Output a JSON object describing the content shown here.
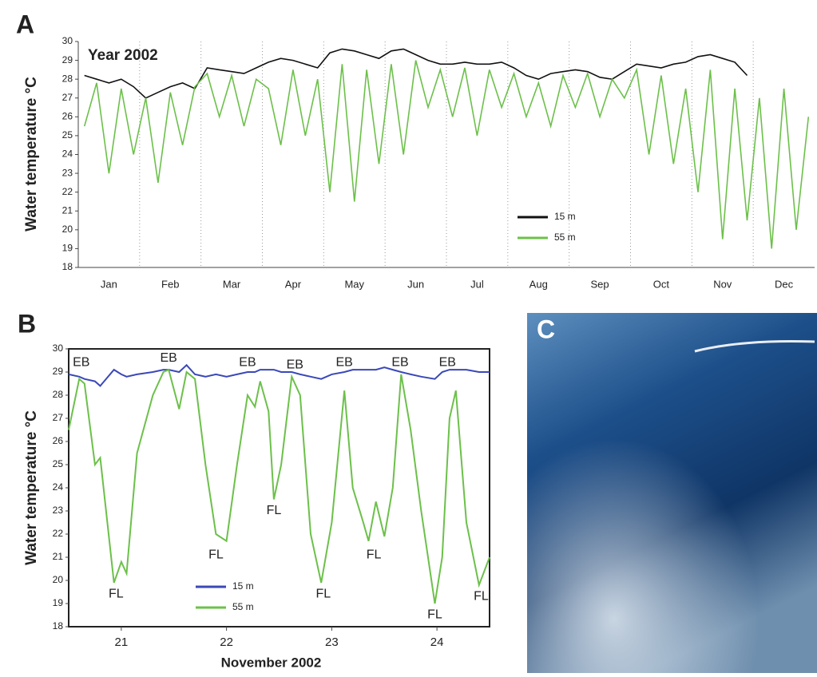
{
  "chart_data": [
    {
      "type": "line",
      "panel": "A",
      "subtitle": "Year 2002",
      "ylabel": "Water temperature °C",
      "categories": [
        null,
        null,
        "Jan",
        null,
        null,
        null,
        null,
        "Feb",
        null,
        null,
        null,
        null,
        "Mar",
        null,
        null,
        null,
        null,
        "Apr",
        null,
        null,
        null,
        null,
        "May",
        null,
        null,
        null,
        null,
        "Jun",
        null,
        null,
        null,
        null,
        "Jul",
        null,
        null,
        null,
        null,
        "Aug",
        null,
        null,
        null,
        null,
        "Sep",
        null,
        null,
        null,
        null,
        "Oct",
        null,
        null,
        null,
        null,
        "Nov",
        null,
        null,
        null,
        null,
        "Dec",
        null,
        null
      ],
      "series": [
        {
          "name": "15 m",
          "color": "#111111",
          "values": [
            28.2,
            28.0,
            27.8,
            28.0,
            27.6,
            27.0,
            27.3,
            27.6,
            27.8,
            27.5,
            28.6,
            28.5,
            28.4,
            28.3,
            28.6,
            28.9,
            29.1,
            29.0,
            28.8,
            28.6,
            29.4,
            29.6,
            29.5,
            29.3,
            29.1,
            29.5,
            29.6,
            29.3,
            29.0,
            28.8,
            28.8,
            28.9,
            28.8,
            28.8,
            28.9,
            28.6,
            28.2,
            28.0,
            28.3,
            28.4,
            28.5,
            28.4,
            28.1,
            28.0,
            28.4,
            28.8,
            28.7,
            28.6,
            28.8,
            28.9,
            29.2,
            29.3,
            29.1,
            28.9,
            28.2,
            null,
            null,
            null,
            null,
            null
          ]
        },
        {
          "name": "55 m",
          "color": "#6cc04a",
          "values": [
            25.5,
            27.8,
            23.0,
            27.5,
            24.0,
            27.0,
            22.5,
            27.3,
            24.5,
            27.6,
            28.3,
            26.0,
            28.2,
            25.5,
            28.0,
            27.5,
            24.5,
            28.5,
            25.0,
            28.0,
            22.0,
            28.8,
            21.5,
            28.5,
            23.5,
            28.8,
            24.0,
            29.0,
            26.5,
            28.5,
            26.0,
            28.6,
            25.0,
            28.5,
            26.5,
            28.3,
            26.0,
            27.8,
            25.5,
            28.2,
            26.5,
            28.3,
            26.0,
            28.0,
            27.0,
            28.5,
            24.0,
            28.2,
            23.5,
            27.5,
            22.0,
            28.5,
            19.5,
            27.5,
            20.5,
            27.0,
            19.0,
            27.5,
            20.0,
            26.0
          ]
        }
      ],
      "ylim": [
        18,
        30
      ],
      "yticks": [
        18,
        19,
        20,
        21,
        22,
        23,
        24,
        25,
        26,
        27,
        28,
        29,
        30
      ]
    },
    {
      "type": "line",
      "panel": "B",
      "ylabel": "Water temperature °C",
      "xlabel": "November 2002",
      "x": [
        20.5,
        20.6,
        20.65,
        20.75,
        20.8,
        20.93,
        21.0,
        21.05,
        21.15,
        21.3,
        21.4,
        21.45,
        21.55,
        21.62,
        21.7,
        21.8,
        21.9,
        22.0,
        22.1,
        22.2,
        22.27,
        22.32,
        22.4,
        22.45,
        22.52,
        22.62,
        22.7,
        22.8,
        22.9,
        23.0,
        23.12,
        23.2,
        23.3,
        23.35,
        23.42,
        23.5,
        23.58,
        23.66,
        23.75,
        23.85,
        23.98,
        24.05,
        24.12,
        24.18,
        24.28,
        24.4,
        24.5
      ],
      "series": [
        {
          "name": "15 m",
          "color": "#3a48b8",
          "values": [
            28.9,
            28.8,
            28.7,
            28.6,
            28.4,
            29.1,
            28.9,
            28.8,
            28.9,
            29.0,
            29.1,
            29.1,
            29.0,
            29.3,
            28.9,
            28.8,
            28.9,
            28.8,
            28.9,
            29.0,
            29.0,
            29.1,
            29.1,
            29.1,
            29.0,
            29.0,
            28.9,
            28.8,
            28.7,
            28.9,
            29.0,
            29.1,
            29.1,
            29.1,
            29.1,
            29.2,
            29.1,
            29.0,
            28.9,
            28.8,
            28.7,
            29.0,
            29.1,
            29.1,
            29.1,
            29.0,
            29.0
          ]
        },
        {
          "name": "55 m",
          "color": "#6cc04a",
          "values": [
            26.5,
            28.7,
            28.5,
            25.0,
            25.3,
            19.9,
            20.8,
            20.3,
            25.5,
            28.0,
            29.0,
            29.1,
            27.4,
            29.0,
            28.7,
            25.0,
            22.0,
            21.7,
            25.0,
            28.0,
            27.5,
            28.6,
            27.3,
            23.5,
            25.0,
            28.8,
            28.0,
            22.0,
            19.9,
            22.5,
            28.2,
            24.0,
            22.5,
            21.7,
            23.4,
            21.9,
            24.0,
            28.9,
            26.5,
            23.0,
            19.0,
            21.0,
            27.0,
            28.2,
            22.5,
            19.8,
            21.0
          ]
        }
      ],
      "xlim": [
        20.5,
        24.5
      ],
      "xticks": [
        21,
        22,
        23,
        24
      ],
      "ylim": [
        18,
        30
      ],
      "yticks": [
        18,
        19,
        20,
        21,
        22,
        23,
        24,
        25,
        26,
        27,
        28,
        29,
        30
      ],
      "annotations": [
        {
          "text": "EB",
          "x": 20.62,
          "y": 29.4
        },
        {
          "text": "EB",
          "x": 21.45,
          "y": 29.6
        },
        {
          "text": "EB",
          "x": 22.2,
          "y": 29.4
        },
        {
          "text": "EB",
          "x": 22.65,
          "y": 29.3
        },
        {
          "text": "EB",
          "x": 23.12,
          "y": 29.4
        },
        {
          "text": "EB",
          "x": 23.65,
          "y": 29.4
        },
        {
          "text": "EB",
          "x": 24.1,
          "y": 29.4
        },
        {
          "text": "FL",
          "x": 20.95,
          "y": 19.4
        },
        {
          "text": "FL",
          "x": 21.9,
          "y": 21.1
        },
        {
          "text": "FL",
          "x": 22.45,
          "y": 23.0
        },
        {
          "text": "FL",
          "x": 22.92,
          "y": 19.4
        },
        {
          "text": "FL",
          "x": 23.4,
          "y": 21.1
        },
        {
          "text": "FL",
          "x": 23.98,
          "y": 18.5
        },
        {
          "text": "FL",
          "x": 24.42,
          "y": 19.3
        }
      ]
    }
  ],
  "image_panel": {
    "label": "C"
  }
}
